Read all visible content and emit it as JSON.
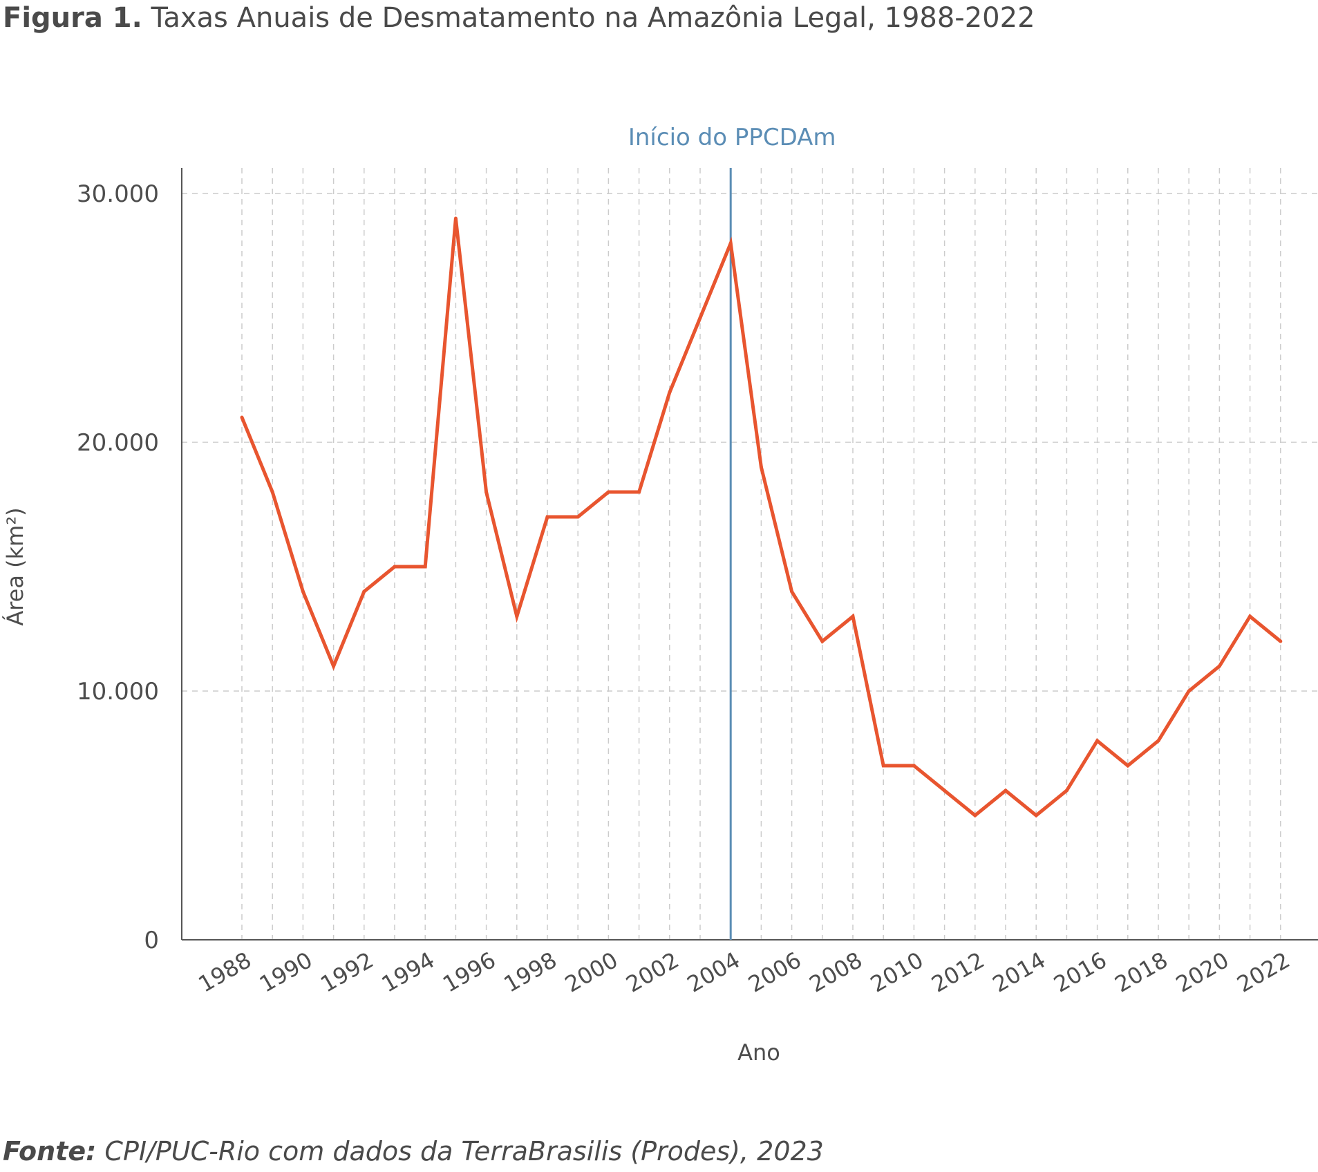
{
  "title": {
    "prefix": "Figura 1.",
    "text": "Taxas Anuais de Desmatamento na Amazônia Legal, 1988-2022"
  },
  "source": {
    "prefix": "Fonte:",
    "text": "CPI/PUC-Rio com dados da TerraBrasilis (Prodes), 2023"
  },
  "colors": {
    "line": "#e8552f",
    "marker": "#5b8db5",
    "axis": "#555555",
    "grid": "#cccccc",
    "text": "#4d4d4d"
  },
  "chart_data": {
    "type": "line",
    "xlabel": "Ano",
    "ylabel": "Área (km²)",
    "ylim": [
      0,
      30000
    ],
    "xlim": [
      1986,
      2023
    ],
    "grid": true,
    "yticks": [
      0,
      10000,
      20000,
      30000
    ],
    "ytick_labels": [
      "0",
      "10.000",
      "20.000",
      "30.000"
    ],
    "xtick_labels": [
      "1988",
      "1990",
      "1992",
      "1994",
      "1996",
      "1998",
      "2000",
      "2002",
      "2004",
      "2006",
      "2008",
      "2010",
      "2012",
      "2014",
      "2016",
      "2018",
      "2020",
      "2022"
    ],
    "x": [
      1988,
      1989,
      1990,
      1991,
      1992,
      1993,
      1994,
      1995,
      1996,
      1997,
      1998,
      1999,
      2000,
      2001,
      2002,
      2003,
      2004,
      2005,
      2006,
      2007,
      2008,
      2009,
      2010,
      2011,
      2012,
      2013,
      2014,
      2015,
      2016,
      2017,
      2018,
      2019,
      2020,
      2021,
      2022
    ],
    "series": [
      {
        "values": [
          21000,
          18000,
          14000,
          11000,
          14000,
          15000,
          15000,
          29000,
          18000,
          13000,
          17000,
          17000,
          18000,
          18000,
          22000,
          25000,
          28000,
          19000,
          14000,
          12000,
          13000,
          7000,
          7000,
          6000,
          5000,
          6000,
          5000,
          6000,
          8000,
          7000,
          8000,
          10000,
          11000,
          13000,
          12000
        ]
      }
    ],
    "annotations": [
      {
        "x": 2004,
        "text": "Início do PPCDAm"
      }
    ]
  }
}
